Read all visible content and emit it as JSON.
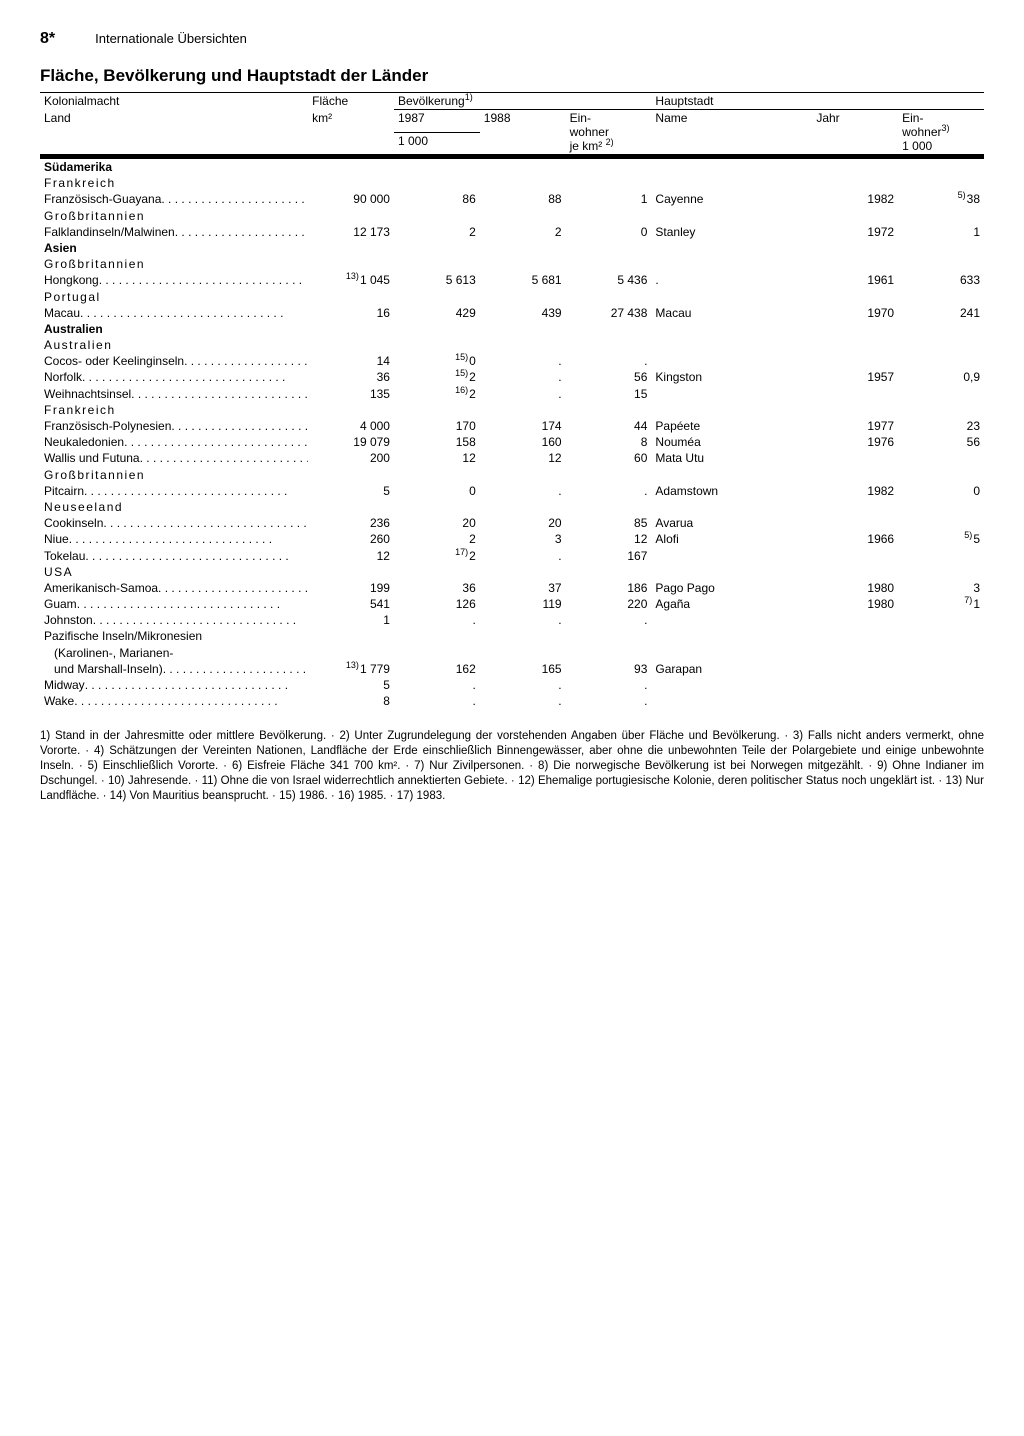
{
  "page_number": "8*",
  "running_head": "Internationale Übersichten",
  "title": "Fläche, Bevölkerung und Hauptstadt der Länder",
  "header": {
    "col_power": "Kolonialmacht",
    "col_land": "Land",
    "col_area": "Fläche",
    "col_area_unit": "km²",
    "col_pop": "Bevölkerung",
    "col_pop_ref": "1)",
    "col_y1": "1987",
    "col_y2": "1988",
    "col_unit_1000": "1 000",
    "col_dens_l1": "Ein-",
    "col_dens_l2": "wohner",
    "col_dens_l3": "je km²",
    "col_dens_ref": "2)",
    "col_capital": "Hauptstadt",
    "col_name": "Name",
    "col_jahr": "Jahr",
    "col_ein_l1": "Ein-",
    "col_ein_l2": "wohner",
    "col_ein_ref": "3)",
    "col_ein_unit": "1 000"
  },
  "sections": [
    {
      "continent": "Südamerika",
      "powers": [
        {
          "name": "Frankreich",
          "rows": [
            {
              "land": "Französisch-Guayana",
              "area": "90 000",
              "y1": "86",
              "y2": "88",
              "dens": "1",
              "cap": "Cayenne",
              "jahr": "1982",
              "ein": "38",
              "ein_pre": "5)"
            }
          ]
        },
        {
          "name": "Großbritannien",
          "rows": [
            {
              "land": "Falklandinseln/Malwinen",
              "area": "12 173",
              "y1": "2",
              "y2": "2",
              "dens": "0",
              "cap": "Stanley",
              "jahr": "1972",
              "ein": "1"
            }
          ]
        }
      ]
    },
    {
      "continent": "Asien",
      "powers": [
        {
          "name": "Großbritannien",
          "rows": [
            {
              "land": "Hongkong",
              "area": "1 045",
              "area_pre": "13)",
              "y1": "5 613",
              "y2": "5 681",
              "dens": "5 436",
              "cap": ".",
              "jahr": "1961",
              "ein": "633"
            }
          ]
        },
        {
          "name": "Portugal",
          "rows": [
            {
              "land": "Macau",
              "area": "16",
              "y1": "429",
              "y2": "439",
              "dens": "27 438",
              "cap": "Macau",
              "jahr": "1970",
              "ein": "241"
            }
          ]
        }
      ]
    },
    {
      "continent": "Australien",
      "powers": [
        {
          "name": "Australien",
          "rows": [
            {
              "land": "Cocos- oder Keelinginseln",
              "area": "14",
              "y1": "0",
              "y1_pre": "15)",
              "y2": ".",
              "dens": ".",
              "cap": "",
              "jahr": "",
              "ein": ""
            },
            {
              "land": "Norfolk",
              "area": "36",
              "y1": "2",
              "y1_pre": "15)",
              "y2": ".",
              "dens": "56",
              "cap": "Kingston",
              "jahr": "1957",
              "ein": "0,9"
            },
            {
              "land": "Weihnachtsinsel",
              "area": "135",
              "y1": "2",
              "y1_pre": "16)",
              "y2": ".",
              "dens": "15",
              "cap": "",
              "jahr": "",
              "ein": ""
            }
          ]
        },
        {
          "name": "Frankreich",
          "rows": [
            {
              "land": "Französisch-Polynesien",
              "area": "4 000",
              "y1": "170",
              "y2": "174",
              "dens": "44",
              "cap": "Papéete",
              "jahr": "1977",
              "ein": "23"
            },
            {
              "land": "Neukaledonien",
              "area": "19 079",
              "y1": "158",
              "y2": "160",
              "dens": "8",
              "cap": "Nouméa",
              "jahr": "1976",
              "ein": "56"
            },
            {
              "land": "Wallis und Futuna",
              "area": "200",
              "y1": "12",
              "y2": "12",
              "dens": "60",
              "cap": "Mata Utu",
              "jahr": "",
              "ein": ""
            }
          ]
        },
        {
          "name": "Großbritannien",
          "rows": [
            {
              "land": "Pitcairn",
              "area": "5",
              "y1": "0",
              "y2": ".",
              "dens": ".",
              "cap": "Adamstown",
              "jahr": "1982",
              "ein": "0"
            }
          ]
        },
        {
          "name": "Neuseeland",
          "rows": [
            {
              "land": "Cookinseln",
              "area": "236",
              "y1": "20",
              "y2": "20",
              "dens": "85",
              "cap": "Avarua",
              "jahr": "",
              "ein": ""
            },
            {
              "land": "Niue",
              "area": "260",
              "y1": "2",
              "y2": "3",
              "dens": "12",
              "cap": "Alofi",
              "jahr": "1966",
              "ein": "5",
              "ein_pre": "5)"
            },
            {
              "land": "Tokelau",
              "area": "12",
              "y1": "2",
              "y1_pre": "17)",
              "y2": ".",
              "dens": "167",
              "cap": "",
              "jahr": "",
              "ein": ""
            }
          ]
        },
        {
          "name": "USA",
          "rows": [
            {
              "land": "Amerikanisch-Samoa",
              "area": "199",
              "y1": "36",
              "y2": "37",
              "dens": "186",
              "cap": "Pago Pago",
              "jahr": "1980",
              "ein": "3"
            },
            {
              "land": "Guam",
              "area": "541",
              "y1": "126",
              "y2": "119",
              "dens": "220",
              "cap": "Agaña",
              "jahr": "1980",
              "ein": "1",
              "ein_pre": "7)"
            },
            {
              "land": "Johnston",
              "area": "1",
              "y1": ".",
              "y2": ".",
              "dens": ".",
              "cap": "",
              "jahr": "",
              "ein": ""
            },
            {
              "land": "Pazifische Inseln/Mikronesien",
              "no_dots": true,
              "area": "",
              "y1": "",
              "y2": "",
              "dens": "",
              "cap": "",
              "jahr": "",
              "ein": ""
            },
            {
              "land": "(Karolinen-, Marianen-",
              "no_dots": true,
              "indent": true,
              "area": "",
              "y1": "",
              "y2": "",
              "dens": "",
              "cap": "",
              "jahr": "",
              "ein": ""
            },
            {
              "land": "und Marshall-Inseln)",
              "indent": true,
              "area": "1 779",
              "area_pre": "13)",
              "y1": "162",
              "y2": "165",
              "dens": "93",
              "cap": "Garapan",
              "jahr": "",
              "ein": ""
            },
            {
              "land": "Midway",
              "area": "5",
              "y1": ".",
              "y2": ".",
              "dens": ".",
              "cap": "",
              "jahr": "",
              "ein": ""
            },
            {
              "land": "Wake",
              "area": "8",
              "y1": ".",
              "y2": ".",
              "dens": ".",
              "cap": "",
              "jahr": "",
              "ein": ""
            }
          ]
        }
      ]
    }
  ],
  "footnotes": "1) Stand in der Jahresmitte oder mittlere Bevölkerung. · 2) Unter Zugrundelegung der vorstehenden Angaben über Fläche und Bevölkerung. · 3) Falls nicht anders vermerkt, ohne Vororte. · 4) Schätzungen der Vereinten Nationen, Landfläche der Erde einschließlich Binnengewässer, aber ohne die unbewohnten Teile der Polargebiete und einige unbewohnte Inseln. · 5) Einschließlich Vororte. · 6) Eisfreie Fläche 341 700 km². · 7) Nur Zivilpersonen. · 8) Die norwegische Bevölkerung ist bei Norwegen mitgezählt. · 9) Ohne Indianer im Dschungel. · 10) Jahresende. · 11) Ohne die von Israel widerrechtlich annektierten Gebiete. · 12) Ehemalige portugiesische Kolonie, deren politischer Status noch ungeklärt ist. · 13) Nur Landfläche. · 14) Von Mauritius beansprucht. · 15) 1986. · 16) 1985. · 17) 1983."
}
